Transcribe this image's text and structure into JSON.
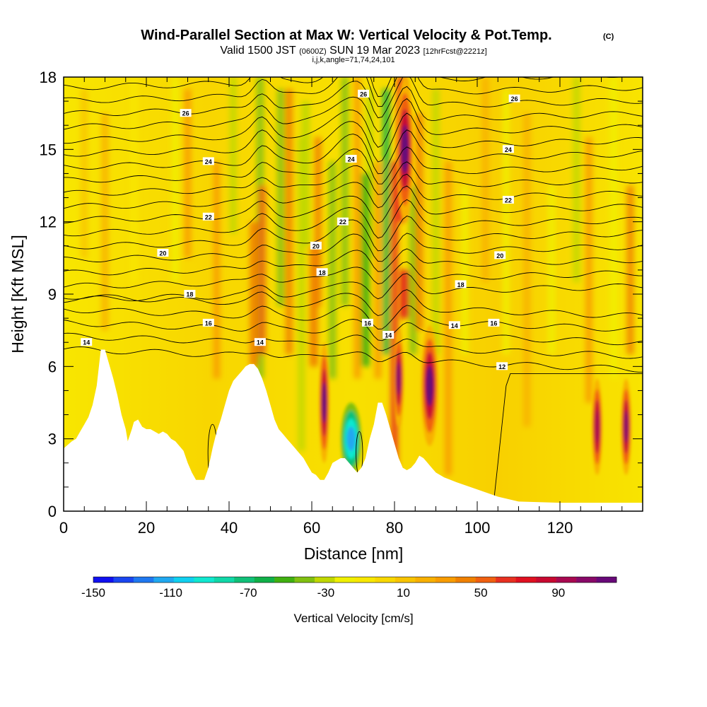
{
  "chart_data": {
    "type": "heatmap",
    "title": "Wind-Parallel Section at Max W: Vertical Velocity & Pot.Temp.",
    "title_mark": "(C)",
    "subtitle_parts": [
      "Valid 1500 JST",
      "(0600Z)",
      "SUN 19 Mar 2023",
      "[12hrFcst@2221z]"
    ],
    "subtitle2": "i,j,k,angle=71,74,24,101",
    "xlabel": "Distance [nm]",
    "ylabel": "Height [Kft MSL]",
    "xlim": [
      0,
      140
    ],
    "ylim": [
      0,
      18
    ],
    "x_ticks": [
      "0",
      "20",
      "40",
      "60",
      "80",
      "100",
      "120"
    ],
    "y_ticks": [
      "0",
      "3",
      "6",
      "9",
      "12",
      "15",
      "18"
    ],
    "grid": false,
    "colorbar": {
      "title": "Vertical Velocity [cm/s]",
      "labels": [
        "-150",
        "-110",
        "-70",
        "-30",
        "10",
        "50",
        "90"
      ],
      "min": -150,
      "max": 120,
      "colors": [
        "#1010f0",
        "#1a46f0",
        "#1f78f0",
        "#20a8f0",
        "#10d0f0",
        "#10e8d0",
        "#10d8a8",
        "#10c078",
        "#10b048",
        "#40b010",
        "#80c010",
        "#c0d800",
        "#f0f000",
        "#f8e800",
        "#f8d800",
        "#f8c400",
        "#f8b000",
        "#f89c00",
        "#f08000",
        "#f06010",
        "#e83020",
        "#e01020",
        "#c80830",
        "#a80850",
        "#880868",
        "#680878"
      ]
    },
    "theta_contour_labels": [
      "12",
      "14",
      "16",
      "18",
      "20",
      "22",
      "24",
      "26"
    ],
    "theta_label_positions": [
      {
        "text": "26",
        "x": 29.5,
        "y": 16.5
      },
      {
        "text": "24",
        "x": 35,
        "y": 14.5
      },
      {
        "text": "22",
        "x": 35,
        "y": 12.2
      },
      {
        "text": "20",
        "x": 24,
        "y": 10.7
      },
      {
        "text": "18",
        "x": 30.5,
        "y": 9.0
      },
      {
        "text": "16",
        "x": 35,
        "y": 7.8
      },
      {
        "text": "14",
        "x": 5.5,
        "y": 7.0
      },
      {
        "text": "14",
        "x": 47.5,
        "y": 7.0
      },
      {
        "text": "20",
        "x": 61,
        "y": 11.0
      },
      {
        "text": "18",
        "x": 62.5,
        "y": 9.9
      },
      {
        "text": "24",
        "x": 69.5,
        "y": 14.6
      },
      {
        "text": "22",
        "x": 67.5,
        "y": 12.0
      },
      {
        "text": "26",
        "x": 72.5,
        "y": 17.3
      },
      {
        "text": "16",
        "x": 73.5,
        "y": 7.8
      },
      {
        "text": "14",
        "x": 78.5,
        "y": 7.3
      },
      {
        "text": "14",
        "x": 94.5,
        "y": 7.7
      },
      {
        "text": "18",
        "x": 96,
        "y": 9.4
      },
      {
        "text": "16",
        "x": 104,
        "y": 7.8
      },
      {
        "text": "20",
        "x": 105.5,
        "y": 10.6
      },
      {
        "text": "22",
        "x": 107.5,
        "y": 12.9
      },
      {
        "text": "24",
        "x": 107.5,
        "y": 15.0
      },
      {
        "text": "26",
        "x": 109,
        "y": 17.1
      },
      {
        "text": "12",
        "x": 106,
        "y": 6.0
      }
    ],
    "terrain_profile": {
      "x": [
        0,
        2,
        3,
        4,
        5,
        6,
        7,
        8,
        9,
        10,
        11,
        12,
        13,
        14,
        15,
        15.5,
        16.5,
        17,
        18,
        19,
        20,
        21,
        22,
        23,
        24,
        25,
        26,
        27,
        28,
        29,
        30,
        31,
        32,
        33,
        34,
        35,
        36,
        37,
        38,
        39,
        40,
        41,
        42,
        43,
        44,
        45,
        46,
        47,
        48,
        49,
        50,
        51,
        52,
        53,
        54,
        55,
        56,
        57,
        58,
        59,
        60,
        61,
        62,
        63,
        64,
        65,
        66,
        67,
        68,
        69,
        70,
        71,
        72,
        73,
        74,
        75,
        76,
        77,
        78,
        79,
        80,
        81,
        82,
        83,
        84,
        85,
        86,
        87,
        88,
        89,
        90,
        92,
        95,
        100,
        105,
        110,
        120,
        130,
        140
      ],
      "height": [
        2.6,
        2.9,
        3.0,
        3.3,
        3.6,
        3.9,
        4.4,
        5.2,
        6.7,
        6.7,
        6.1,
        5.5,
        4.8,
        4.0,
        3.4,
        2.9,
        3.4,
        3.7,
        3.8,
        3.5,
        3.4,
        3.4,
        3.3,
        3.2,
        3.3,
        3.2,
        3.0,
        2.9,
        2.7,
        2.5,
        2.0,
        1.6,
        1.3,
        1.3,
        1.3,
        1.8,
        2.6,
        3.3,
        3.8,
        4.4,
        5.0,
        5.4,
        5.6,
        5.8,
        6.0,
        6.1,
        6.1,
        5.9,
        5.5,
        5.0,
        4.4,
        3.8,
        3.4,
        3.2,
        3.0,
        2.8,
        2.6,
        2.4,
        2.2,
        1.9,
        1.6,
        1.5,
        1.3,
        1.3,
        1.6,
        2.0,
        2.1,
        2.2,
        2.2,
        2.0,
        1.8,
        1.6,
        1.8,
        2.2,
        3.0,
        3.6,
        4.5,
        4.5,
        4.0,
        3.4,
        2.8,
        2.2,
        1.8,
        1.7,
        1.8,
        2.0,
        2.3,
        2.2,
        2.0,
        1.8,
        1.6,
        1.4,
        1.2,
        0.9,
        0.6,
        0.4,
        0.35,
        0.35,
        0.35
      ]
    },
    "vertical_velocity_features": [
      {
        "x": 63,
        "y_center": 4.5,
        "width": 1.5,
        "height": 5,
        "value": 110,
        "label": "updraft"
      },
      {
        "x": 69.5,
        "y_center": 3.0,
        "width": 3,
        "height": 3,
        "value": -110,
        "label": "downdraft"
      },
      {
        "x": 81,
        "y_center": 5.5,
        "width": 1.5,
        "height": 4,
        "value": 100,
        "label": "updraft"
      },
      {
        "x": 82.5,
        "y_center": 15,
        "width": 2.5,
        "height": 6,
        "value": 110,
        "label": "updraft"
      },
      {
        "x": 88.5,
        "y_center": 5.2,
        "width": 2.5,
        "height": 5,
        "value": 120,
        "label": "updraft"
      },
      {
        "x": 129,
        "y_center": 3.5,
        "width": 1.5,
        "height": 4,
        "value": 90,
        "label": "updraft"
      },
      {
        "x": 136,
        "y_center": 3.5,
        "width": 1.5,
        "height": 4,
        "value": 100,
        "label": "updraft"
      }
    ]
  }
}
